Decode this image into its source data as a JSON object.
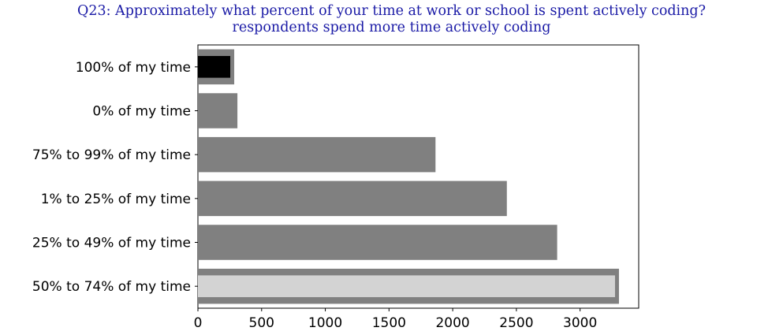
{
  "chart_data": {
    "type": "bar",
    "orientation": "horizontal",
    "title": "Q23: Approximately what percent of your time at work or school is spent actively coding?",
    "subtitle": "respondents spend more time actively coding",
    "categories": [
      "100% of my time",
      "0% of my time",
      "75% to 99% of my time",
      "1% to 25% of my time",
      "25% to 49% of my time",
      "50% to 74% of my time"
    ],
    "values": [
      285,
      310,
      1865,
      2425,
      2820,
      3305
    ],
    "highlight": {
      "min_index": 0,
      "max_index": 5,
      "min_color": "#000000",
      "max_color": "#d3d3d3"
    },
    "bar_color": "#808080",
    "xlim": [
      0,
      3460
    ],
    "xticks": [
      0,
      500,
      1000,
      1500,
      2000,
      2500,
      3000
    ],
    "xlabel": "",
    "ylabel": "",
    "grid": false,
    "legend": "none"
  }
}
